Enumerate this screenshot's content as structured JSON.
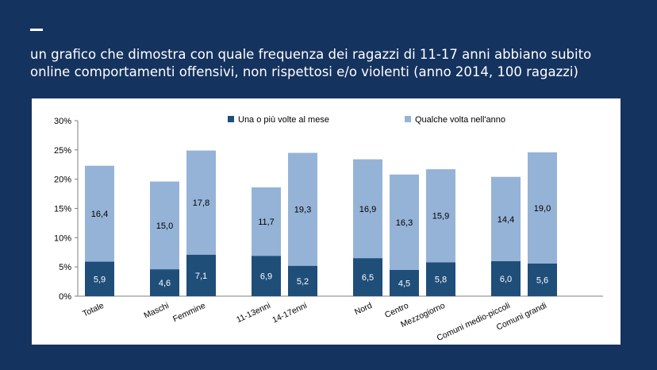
{
  "heading": {
    "line1": "un grafico che dimostra con quale frequenza dei ragazzi di 11-17 anni abbiano subito",
    "line2": "online comportamenti offensivi, non rispettosi e/o violenti (anno 2014, 100 ragazzi)"
  },
  "colors": {
    "background": "#15335f",
    "series_dark": "#1f4e79",
    "series_light": "#95b3d7"
  },
  "chart_data": {
    "type": "bar",
    "stacked": true,
    "categories": [
      "Totale",
      "Maschi",
      "Femmine",
      "11-13enni",
      "14-17enni",
      "Nord",
      "Centro",
      "Mezzogiorno",
      "Comuni medio-piccoli",
      "Comuni grandi"
    ],
    "series": [
      {
        "name": "Una o più volte al mese",
        "values": [
          5.9,
          4.6,
          7.1,
          6.9,
          5.2,
          6.5,
          4.5,
          5.8,
          6.0,
          5.6
        ],
        "labels": [
          "5,9",
          "4,6",
          "7,1",
          "6,9",
          "5,2",
          "6,5",
          "4,5",
          "5,8",
          "6,0",
          "5,6"
        ]
      },
      {
        "name": "Qualche volta nell'anno",
        "values": [
          16.4,
          15.0,
          17.8,
          11.7,
          19.3,
          16.9,
          16.3,
          15.9,
          14.4,
          19.0
        ],
        "labels": [
          "16,4",
          "15,0",
          "17,8",
          "11,7",
          "19,3",
          "16,9",
          "16,3",
          "15,9",
          "14,4",
          "19,0"
        ]
      }
    ],
    "groups": [
      [
        0
      ],
      [
        1,
        2
      ],
      [
        3,
        4
      ],
      [
        5,
        6,
        7
      ],
      [
        8,
        9
      ]
    ],
    "ylim": [
      0,
      30
    ],
    "yticks": [
      "0%",
      "5%",
      "10%",
      "15%",
      "20%",
      "25%",
      "30%"
    ],
    "legend_position": "top",
    "grid": false
  }
}
